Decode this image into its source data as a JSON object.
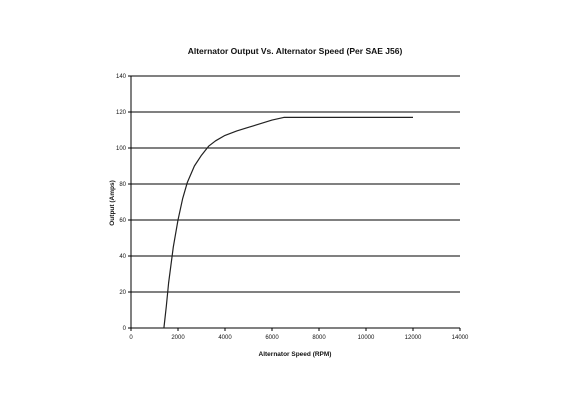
{
  "chart_data": {
    "type": "line",
    "title": "Alternator Output  Vs. Alternator Speed (Per SAE J56)",
    "xlabel": "Alternator Speed (RPM)",
    "ylabel": "Output (Amps)",
    "xlim": [
      0,
      14000
    ],
    "ylim": [
      0,
      140
    ],
    "x_ticks": [
      0,
      2000,
      4000,
      6000,
      8000,
      10000,
      12000,
      14000
    ],
    "y_ticks": [
      0,
      20,
      40,
      60,
      80,
      100,
      120,
      140
    ],
    "x_tick_labels": [
      "0",
      "2000",
      "4000",
      "6000",
      "8000",
      "10000",
      "12000",
      "14000"
    ],
    "y_tick_labels": [
      "0",
      "20",
      "40",
      "60",
      "80",
      "100",
      "120",
      "140"
    ],
    "grid": "horizontal",
    "legend": "none",
    "line_color": "#222222",
    "grid_color": "#000000",
    "series": [
      {
        "x": [
          1400,
          1500,
          1600,
          1800,
          2000,
          2200,
          2400,
          2700,
          3000,
          3300,
          3600,
          4000,
          4500,
          5000,
          5500,
          6000,
          6500,
          6800,
          8000,
          10000,
          12000
        ],
        "y": [
          0,
          12,
          25,
          45,
          60,
          72,
          81,
          90,
          96,
          101,
          104,
          107,
          109.5,
          111.5,
          113.5,
          115.5,
          117,
          117,
          117,
          117,
          117
        ]
      }
    ]
  }
}
